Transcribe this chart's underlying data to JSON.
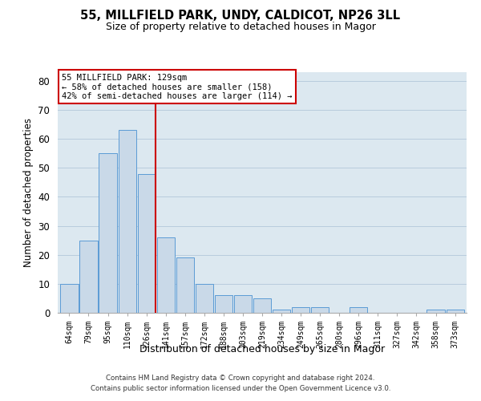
{
  "title1": "55, MILLFIELD PARK, UNDY, CALDICOT, NP26 3LL",
  "title2": "Size of property relative to detached houses in Magor",
  "xlabel": "Distribution of detached houses by size in Magor",
  "ylabel": "Number of detached properties",
  "categories": [
    "64sqm",
    "79sqm",
    "95sqm",
    "110sqm",
    "126sqm",
    "141sqm",
    "157sqm",
    "172sqm",
    "188sqm",
    "203sqm",
    "219sqm",
    "234sqm",
    "249sqm",
    "265sqm",
    "280sqm",
    "296sqm",
    "311sqm",
    "327sqm",
    "342sqm",
    "358sqm",
    "373sqm"
  ],
  "values": [
    10,
    25,
    55,
    63,
    48,
    26,
    19,
    10,
    6,
    6,
    5,
    1,
    2,
    2,
    0,
    2,
    0,
    0,
    0,
    1,
    1
  ],
  "bar_color": "#c9d9e8",
  "bar_edge_color": "#5b9bd5",
  "vline_x_index": 4,
  "vline_color": "#cc0000",
  "annotation_line1": "55 MILLFIELD PARK: 129sqm",
  "annotation_line2": "← 58% of detached houses are smaller (158)",
  "annotation_line3": "42% of semi-detached houses are larger (114) →",
  "annotation_box_color": "#cc0000",
  "annotation_box_fill": "#ffffff",
  "ylim": [
    0,
    83
  ],
  "yticks": [
    0,
    10,
    20,
    30,
    40,
    50,
    60,
    70,
    80
  ],
  "grid_color": "#b8ccdd",
  "background_color": "#dce8f0",
  "footer1": "Contains HM Land Registry data © Crown copyright and database right 2024.",
  "footer2": "Contains public sector information licensed under the Open Government Licence v3.0."
}
